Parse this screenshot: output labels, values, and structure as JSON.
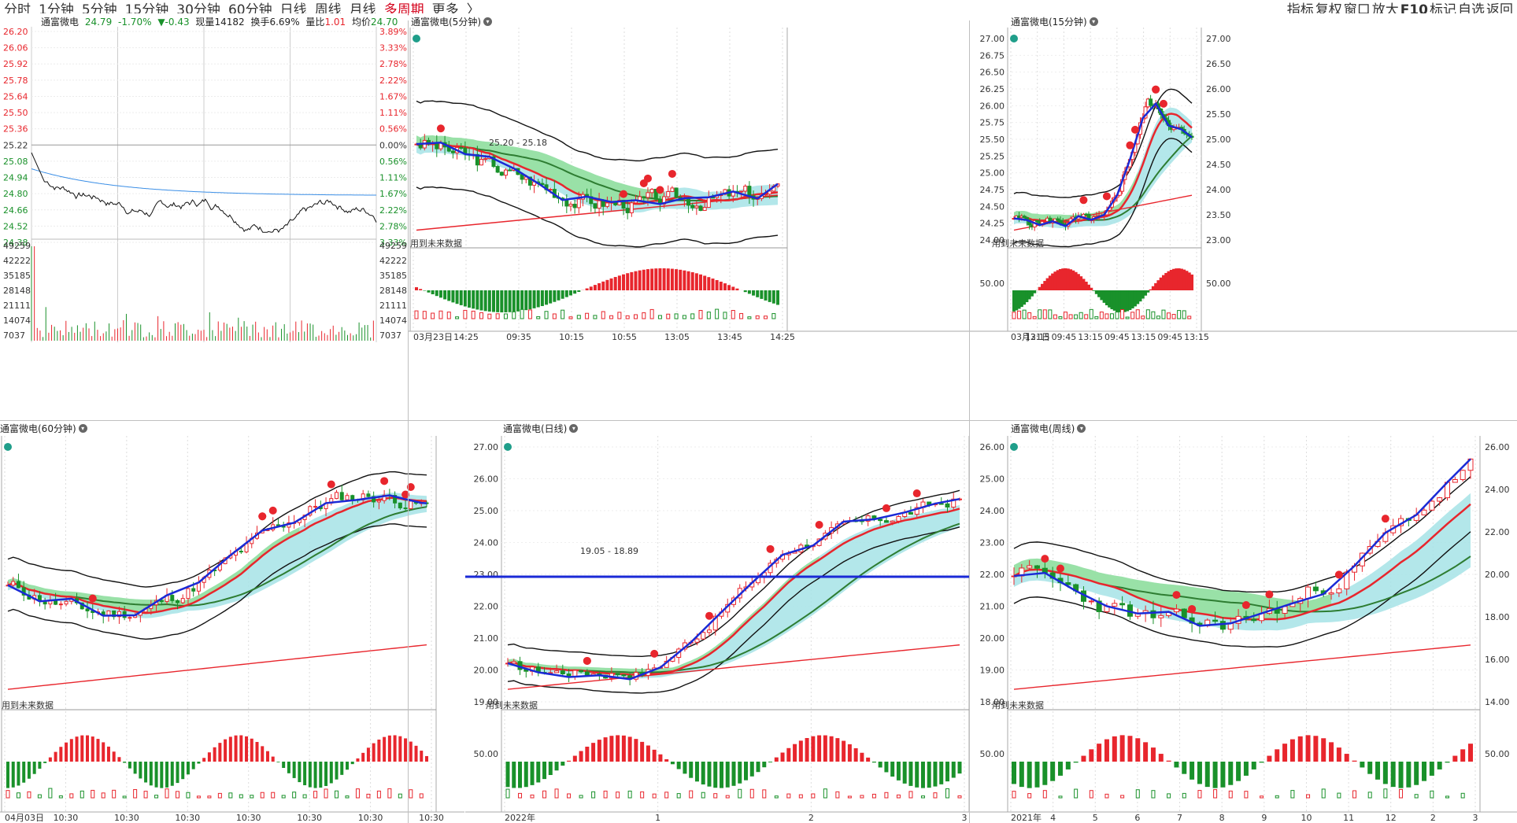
{
  "toolbar": {
    "periods": [
      {
        "label": "分时",
        "active": false
      },
      {
        "label": "1分钟",
        "active": false
      },
      {
        "label": "5分钟",
        "active": false
      },
      {
        "label": "15分钟",
        "active": false
      },
      {
        "label": "30分钟",
        "active": false
      },
      {
        "label": "60分钟",
        "active": false
      },
      {
        "label": "日线",
        "active": false
      },
      {
        "label": "周线",
        "active": false
      },
      {
        "label": "月线",
        "active": false
      },
      {
        "label": "多周期",
        "active": true
      },
      {
        "label": "更多",
        "active": false
      }
    ],
    "more_arrow": "〉",
    "right_tools": [
      "指标",
      "复权",
      "窗口",
      "放大",
      "F10",
      "标记",
      "自选",
      "返回"
    ]
  },
  "colors": {
    "up": "#e8262d",
    "down": "#19912a",
    "ma_blue": "#1a2ad6",
    "grid": "#d9d9d9",
    "accent": "#d4001a"
  },
  "intraday": {
    "title": "通富微电",
    "price": "24.79",
    "pct": "-1.70%",
    "change": "▼-0.43",
    "volume_label": "现量",
    "volume": "14182",
    "turnover_label": "换手",
    "turnover": "6.69%",
    "ratio_label": "量比",
    "ratio": "1.01",
    "avg_label": "均价",
    "avg": "24.70",
    "price_ticks": [
      "26.20",
      "26.06",
      "25.92",
      "25.78",
      "25.64",
      "25.50",
      "25.36",
      "25.22",
      "25.08",
      "24.94",
      "24.80",
      "24.66",
      "24.52",
      "24.38"
    ],
    "pct_ticks": [
      "3.89%",
      "3.33%",
      "2.78%",
      "2.22%",
      "1.67%",
      "1.11%",
      "0.56%",
      "0.00%",
      "0.56%",
      "1.11%",
      "1.67%",
      "2.22%",
      "2.78%",
      "3.33%"
    ],
    "vol_ticks": [
      "49259",
      "42222",
      "35185",
      "28148",
      "21111",
      "14074",
      "7037"
    ]
  },
  "panels": {
    "m5": {
      "title": "通富微电(5分钟)",
      "future_label": "用到未来数据",
      "range_label": "25.20 - 25.18",
      "x_labels": [
        "03月23日",
        "14:25",
        "09:35",
        "10:15",
        "10:55",
        "13:05",
        "13:45",
        "14:25"
      ]
    },
    "m15": {
      "title": "通富微电(15分钟)",
      "future_label": "用到未来数据",
      "y_ticks": [
        "27.00",
        "26.75",
        "26.50",
        "26.25",
        "26.00",
        "25.75",
        "25.50",
        "25.25",
        "25.00",
        "24.75",
        "24.50",
        "24.25",
        "24.00"
      ],
      "right_ticks": [
        "27.00",
        "26.50",
        "26.00",
        "25.50",
        "25.00",
        "24.50",
        "24.00",
        "23.50",
        "23.00"
      ],
      "osc_tick": "50.00",
      "osc_tick_right": "50.00",
      "x_labels": [
        "03月21日",
        "13:15",
        "09:45",
        "13:15",
        "09:45",
        "13:15",
        "09:45",
        "13:15"
      ]
    },
    "m60": {
      "title": "通富微电(60分钟)",
      "future_label": "用到未来数据",
      "x_labels": [
        "04月03日",
        "10:30",
        "10:30",
        "10:30",
        "10:30",
        "10:30",
        "10:30",
        "10:30"
      ]
    },
    "daily": {
      "title": "通富微电(日线)",
      "future_label": "用到未来数据",
      "range_label": "19.05 - 18.89",
      "y_ticks": [
        "27.00",
        "26.00",
        "25.00",
        "24.00",
        "23.00",
        "22.00",
        "21.00",
        "20.00",
        "19.00"
      ],
      "osc_tick": "50.00",
      "x_labels": [
        "2022年",
        "1",
        "2",
        "3"
      ]
    },
    "weekly": {
      "title": "通富微电(周线)",
      "future_label": "用到未来数据",
      "y_ticks": [
        "26.00",
        "25.00",
        "24.00",
        "23.00",
        "22.00",
        "21.00",
        "20.00",
        "19.00",
        "18.00"
      ],
      "right_ticks": [
        "26.00",
        "24.00",
        "22.00",
        "20.00",
        "18.00",
        "16.00",
        "14.00"
      ],
      "osc_tick": "50.00",
      "osc_tick_right": "50.00",
      "x_labels": [
        "2021年",
        "4",
        "5",
        "6",
        "7",
        "8",
        "9",
        "10",
        "11",
        "12",
        "2",
        "3"
      ]
    }
  }
}
